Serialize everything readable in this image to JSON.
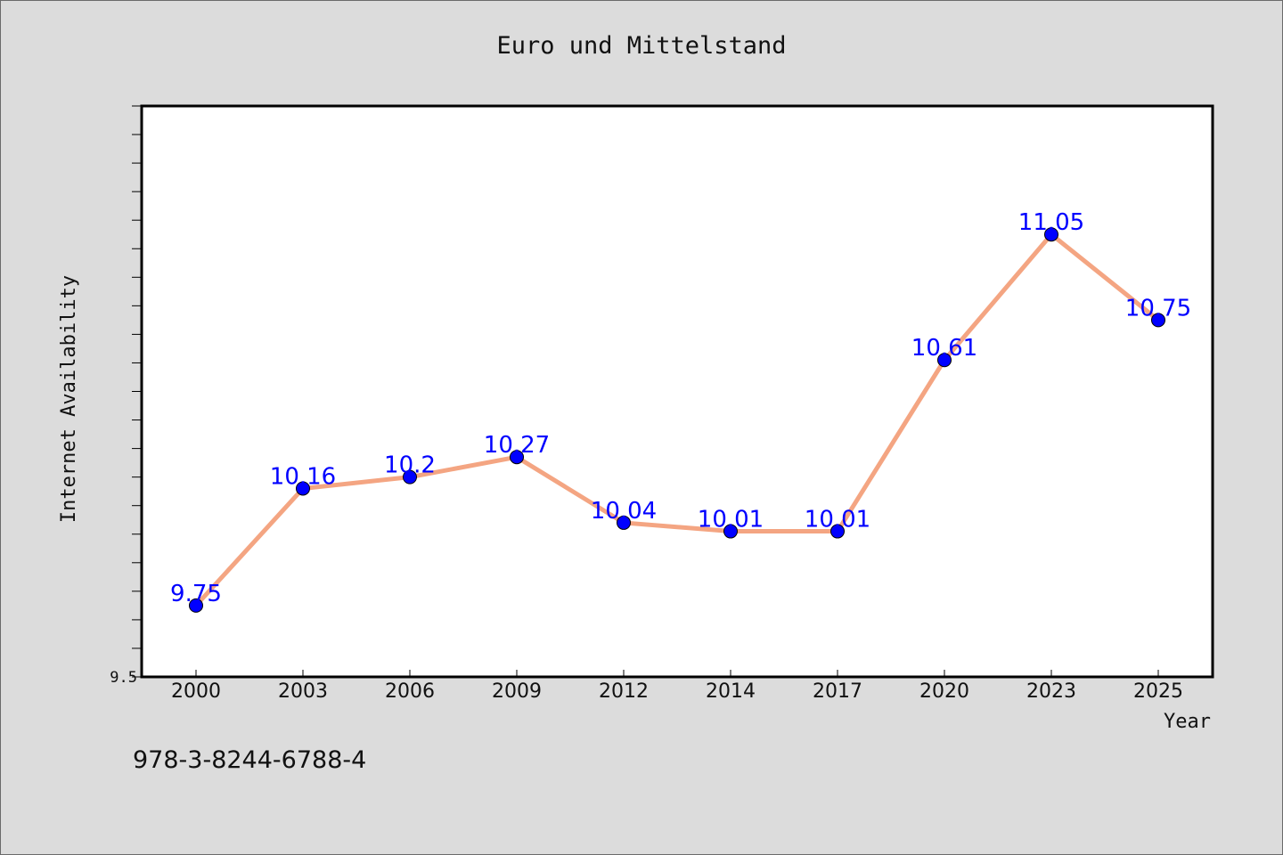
{
  "chart_data": {
    "type": "line",
    "title": "Euro und Mittelstand",
    "xlabel": "Year",
    "ylabel": "Internet Availability",
    "categories": [
      "2000",
      "2003",
      "2006",
      "2009",
      "2012",
      "2014",
      "2017",
      "2020",
      "2023",
      "2025"
    ],
    "series": [
      {
        "values": [
          9.75,
          10.16,
          10.2,
          10.27,
          10.04,
          10.01,
          10.01,
          10.61,
          11.05,
          10.75
        ],
        "labels": [
          "9.75",
          "10.16",
          "10.2",
          "10.27",
          "10.04",
          "10.01",
          "10.01",
          "10.61",
          "11.05",
          "10.75"
        ],
        "line_color": "#f4a582",
        "marker_color": "#0000ff"
      }
    ],
    "ytick_labels": [
      "9.5"
    ],
    "ylim": [
      9.5,
      11.5
    ],
    "grid": false,
    "legend": "none"
  },
  "footer": {
    "isbn": "978-3-8244-6788-4"
  },
  "colors": {
    "background": "#dcdcdc",
    "plot_background": "#ffffff",
    "line": "#f4a582",
    "marker": "#0000ff",
    "data_label": "#0000ff"
  }
}
